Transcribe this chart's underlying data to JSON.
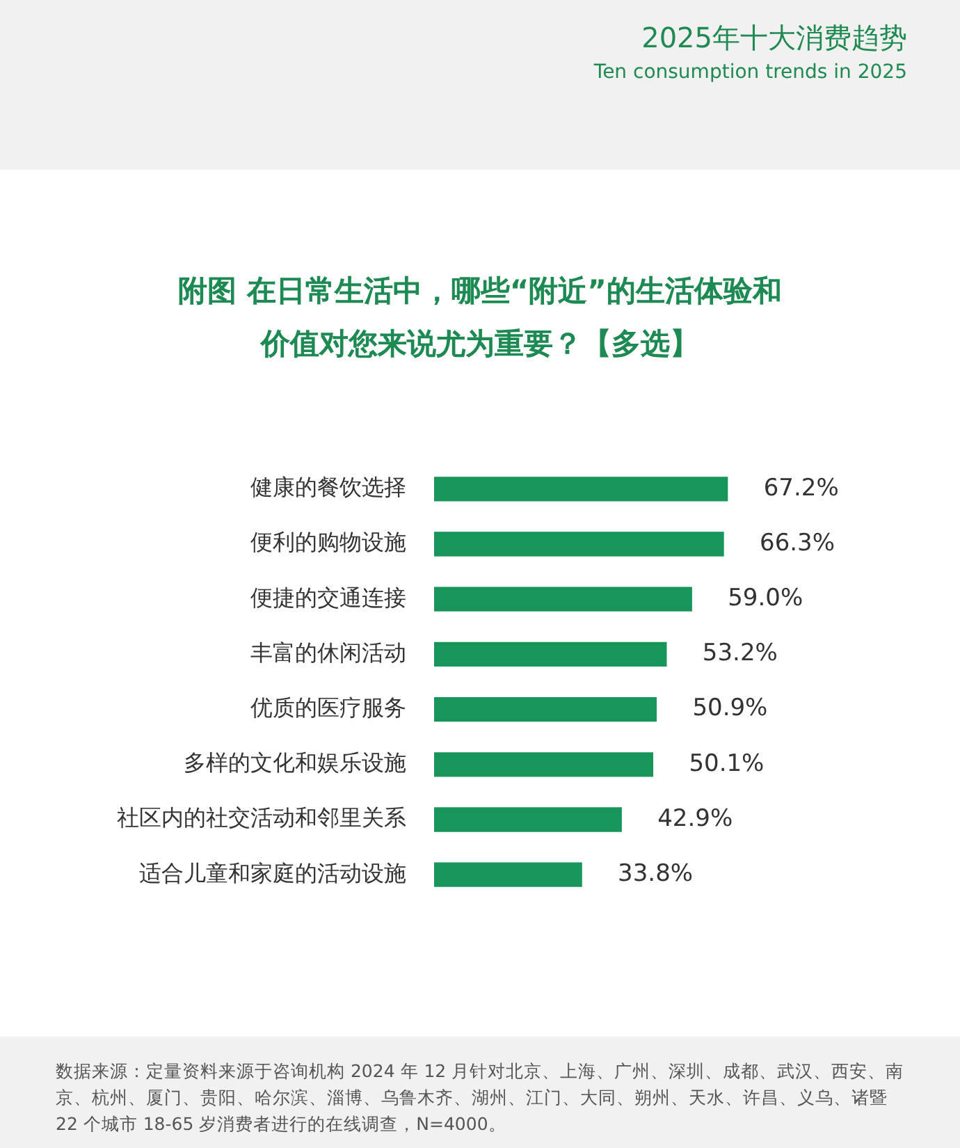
{
  "chart_data": {
    "type": "bar",
    "orientation": "horizontal",
    "title": "附图 在日常生活中，哪些“附近”的生活体验和价值对您来说尤为重要？【多选】",
    "categories": [
      "健康的餐饮选择",
      "便利的购物设施",
      "便捷的交通连接",
      "丰富的休闲活动",
      "优质的医疗服务",
      "多样的文化和娱乐设施",
      "社区内的社交活动和邻里关系",
      "适合儿童和家庭的活动设施"
    ],
    "values": [
      67.2,
      66.3,
      59.0,
      53.2,
      50.9,
      50.1,
      42.9,
      33.8
    ],
    "value_labels": [
      "67.2%",
      "66.3%",
      "59.0%",
      "53.2%",
      "50.9%",
      "50.1%",
      "42.9%",
      "33.8%"
    ],
    "color": "#17955a",
    "annotations": [
      "2025年十大消费趋势",
      "Ten consumption trends in 2025",
      "数据来源：定量资料来源于咨询机构 2024 年 12 月针对北京、上海、广州、深圳、成都、武汉、西安、南京、杭州、厦门、贵阳、哈尔滨、淄博、乌鲁木齐、湖州、江门、大同、朔州、天水、许昌、义乌、诸暨 22 个城市 18-65 岁消费者进行的在线调查，N=4000。"
    ]
  }
}
